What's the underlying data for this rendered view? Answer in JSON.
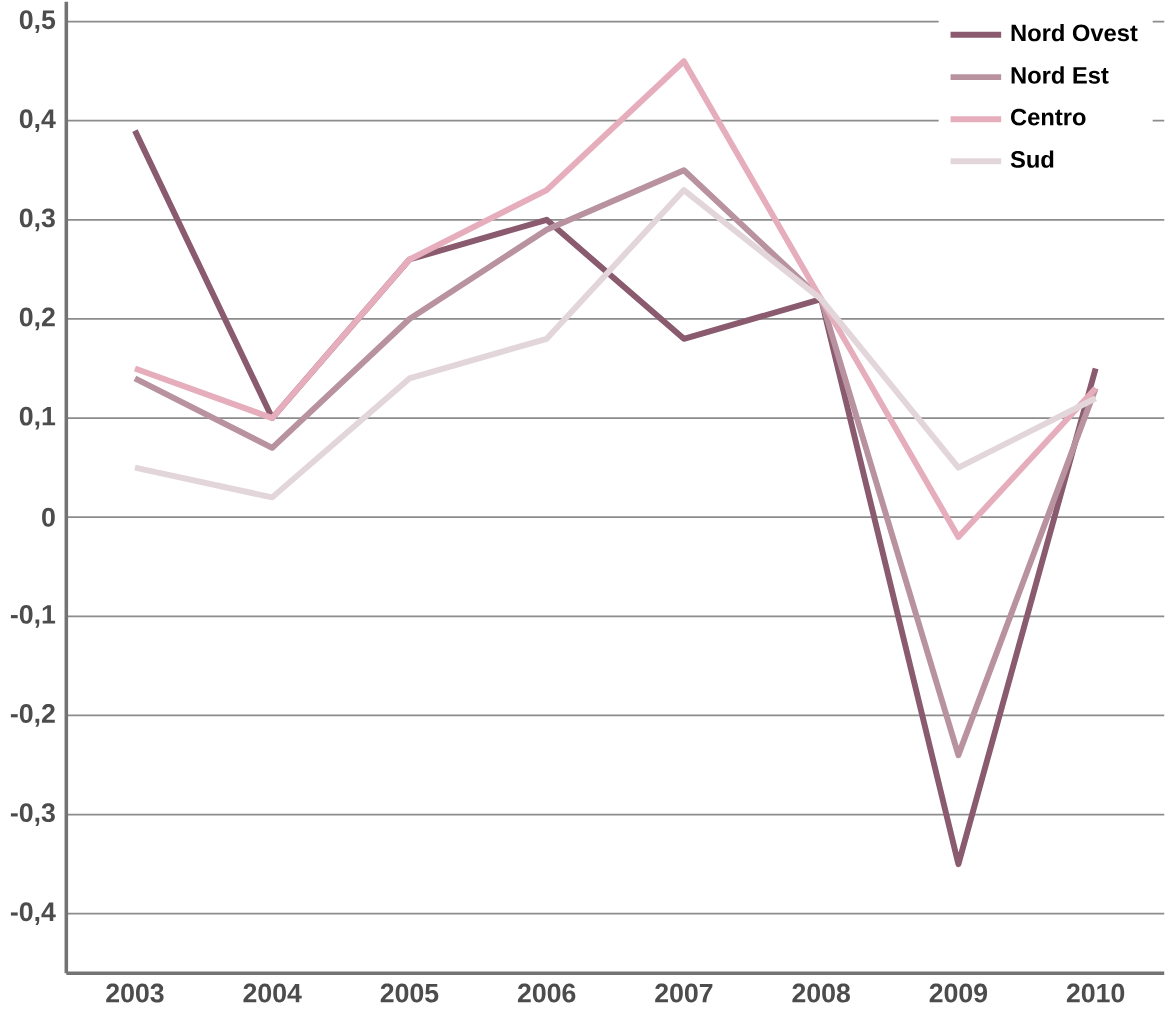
{
  "chart_data": {
    "type": "line",
    "categories": [
      "2003",
      "2004",
      "2005",
      "2006",
      "2007",
      "2008",
      "2009",
      "2010"
    ],
    "series": [
      {
        "name": "Nord Ovest",
        "color": "#8a5a6e",
        "values": [
          0.39,
          0.1,
          0.26,
          0.3,
          0.18,
          0.22,
          -0.35,
          0.15
        ]
      },
      {
        "name": "Nord Est",
        "color": "#b8929f",
        "values": [
          0.14,
          0.07,
          0.2,
          0.29,
          0.35,
          0.22,
          -0.24,
          0.13
        ]
      },
      {
        "name": "Centro",
        "color": "#e6aebc",
        "values": [
          0.15,
          0.1,
          0.26,
          0.33,
          0.46,
          0.22,
          -0.02,
          0.13
        ]
      },
      {
        "name": "Sud",
        "color": "#e2d6db",
        "values": [
          0.05,
          0.02,
          0.14,
          0.18,
          0.33,
          0.22,
          0.05,
          0.12
        ]
      }
    ],
    "ylim": [
      -0.46,
      0.52
    ],
    "yticks": [
      {
        "value": -0.4,
        "label": "-0,4"
      },
      {
        "value": -0.3,
        "label": "-0,3"
      },
      {
        "value": -0.2,
        "label": "-0,2"
      },
      {
        "value": -0.1,
        "label": "-0,1"
      },
      0,
      {
        "value": 0.1,
        "label": "0,1"
      },
      {
        "value": 0.2,
        "label": "0,2"
      },
      {
        "value": 0.3,
        "label": "0,3"
      },
      {
        "value": 0.4,
        "label": "0,4"
      },
      {
        "value": 0.5,
        "label": "0,5"
      }
    ],
    "grid": "y",
    "legend": "top right",
    "marker": "none",
    "line_style": "solid"
  }
}
